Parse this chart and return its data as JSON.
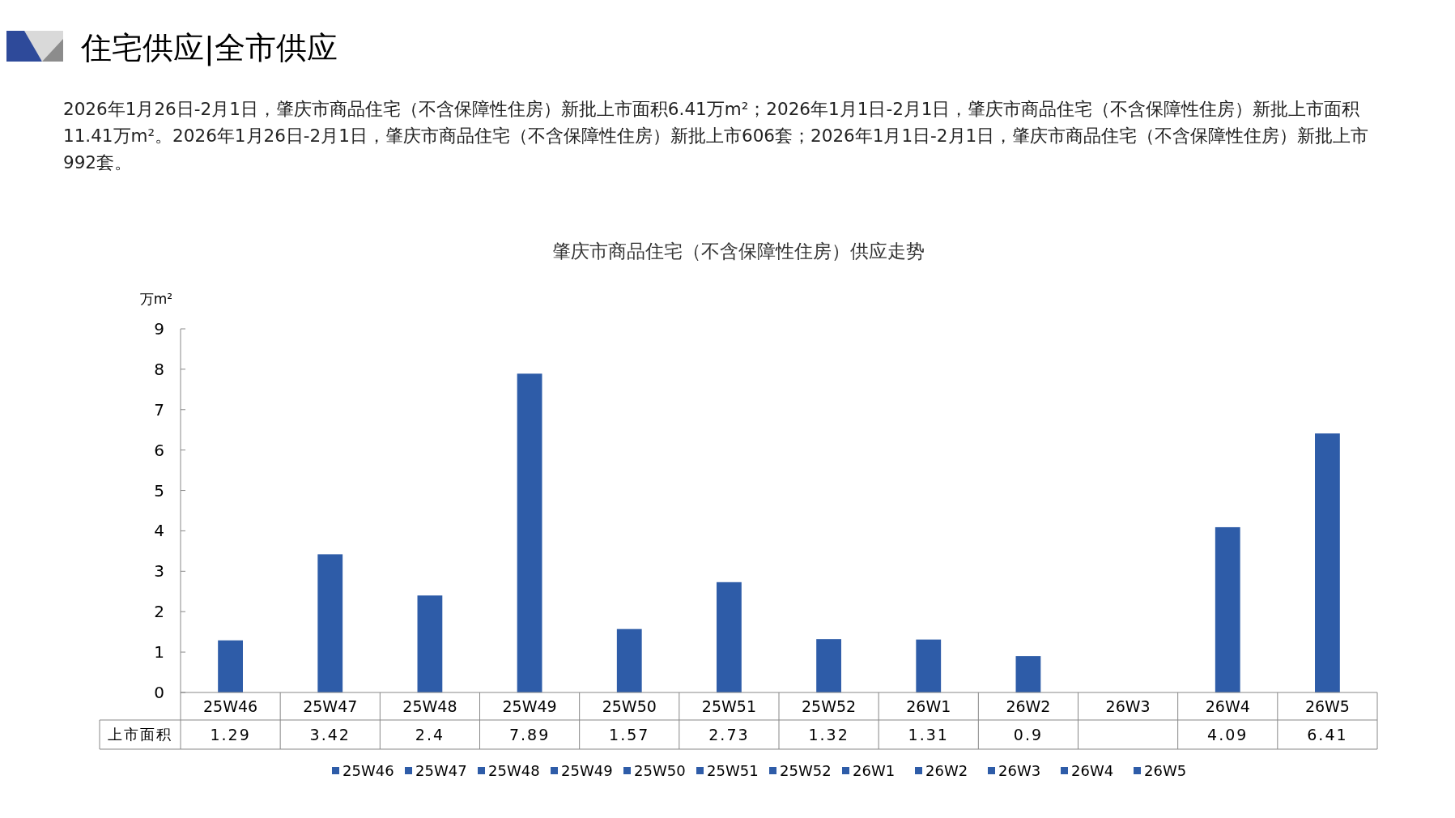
{
  "chart_data": {
    "type": "bar",
    "title": "肇庆市商品住宅（不含保障性住房）供应走势",
    "annotations": [
      "住宅供应|全市供应",
      "2026年1月26日-2月1日，肇庆市商品住宅（不含保障性住房）新批上市面积6.41万m²；2026年1月1日-2月1日，肇庆市商品住宅（不含保障性住房）新批上市面积11.41万m²。2026年1月26日-2月1日，肇庆市商品住宅（不含保障性住房）新批上市606套；2026年1月1日-2月1日，肇庆市商品住宅（不含保障性住房）新批上市992套。"
    ],
    "ylabel": "万m²",
    "categories": [
      "25W46",
      "25W47",
      "25W48",
      "25W49",
      "25W50",
      "25W51",
      "25W52",
      "26W1",
      "26W2",
      "26W3",
      "26W4",
      "26W5"
    ],
    "series": [
      {
        "name": "上市面积",
        "color": "#2e5ca8",
        "values": [
          1.29,
          3.42,
          2.4,
          7.89,
          1.57,
          2.73,
          1.32,
          1.31,
          0.9,
          null,
          4.09,
          6.41
        ]
      }
    ],
    "ylim": [
      0,
      9
    ],
    "yticks": [
      0,
      1,
      2,
      3,
      4,
      5,
      6,
      7,
      8,
      9
    ],
    "data_labels": true,
    "legend": "bottom",
    "grid": false
  }
}
